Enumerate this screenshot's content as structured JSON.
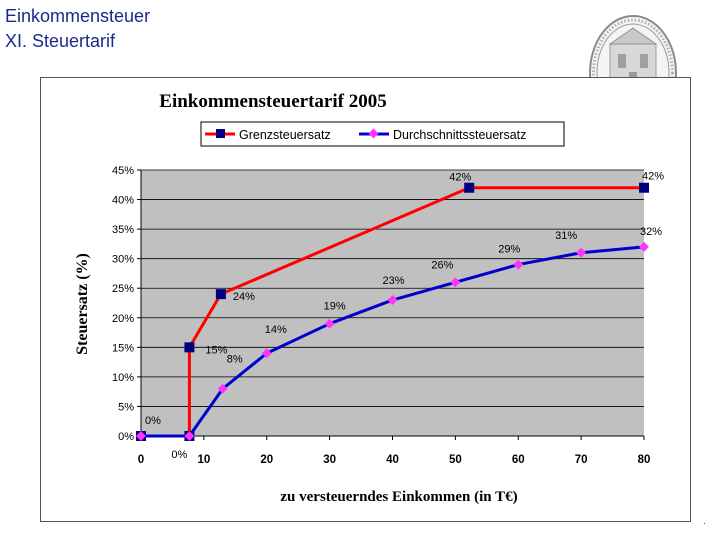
{
  "slide": {
    "title": "Einkommensteuer",
    "subtitle": "XI. Steuertarif",
    "trailing_mark": "."
  },
  "seal": {
    "icon": "university-seal-icon",
    "color": "#8a8a8a"
  },
  "chart_data": {
    "type": "line",
    "title": "Einkommensteuertarif 2005",
    "xlabel": "zu versteuerndes Einkommen (in T€)",
    "ylabel": "Steuersatz (%)",
    "xlim": [
      0,
      80
    ],
    "ylim": [
      0,
      45
    ],
    "x_ticks": [
      "0",
      "10",
      "20",
      "30",
      "40",
      "50",
      "60",
      "70",
      "80"
    ],
    "y_ticks": [
      "0%",
      "5%",
      "10%",
      "15%",
      "20%",
      "25%",
      "30%",
      "35%",
      "40%",
      "45%"
    ],
    "grid": true,
    "legend_position": "top",
    "plot_background": "#c0c0c0",
    "series": [
      {
        "name": "Grenzsteuersatz",
        "color": "#ff0000",
        "marker_color": "#000080",
        "marker": "square",
        "points": [
          {
            "x": 0,
            "y": 0,
            "label": "0%"
          },
          {
            "x": 7.7,
            "y": 0,
            "label": ""
          },
          {
            "x": 7.7,
            "y": 15,
            "label": "15%"
          },
          {
            "x": 12.7,
            "y": 24,
            "label": "24%"
          },
          {
            "x": 52.2,
            "y": 42,
            "label": "42%"
          },
          {
            "x": 80,
            "y": 42,
            "label": "42%"
          }
        ]
      },
      {
        "name": "Durchschnittssteuersatz",
        "color": "#0000cc",
        "marker_color": "#ff33ff",
        "marker": "diamond",
        "points": [
          {
            "x": 0,
            "y": 0,
            "label": ""
          },
          {
            "x": 7.7,
            "y": 0,
            "label": "0%"
          },
          {
            "x": 13,
            "y": 8,
            "label": "8%"
          },
          {
            "x": 20,
            "y": 14,
            "label": "14%"
          },
          {
            "x": 30,
            "y": 19,
            "label": "19%"
          },
          {
            "x": 40,
            "y": 23,
            "label": "23%"
          },
          {
            "x": 50,
            "y": 26,
            "label": "26%"
          },
          {
            "x": 60,
            "y": 29,
            "label": "29%"
          },
          {
            "x": 70,
            "y": 31,
            "label": "31%"
          },
          {
            "x": 80,
            "y": 32,
            "label": "32%"
          }
        ]
      }
    ]
  }
}
